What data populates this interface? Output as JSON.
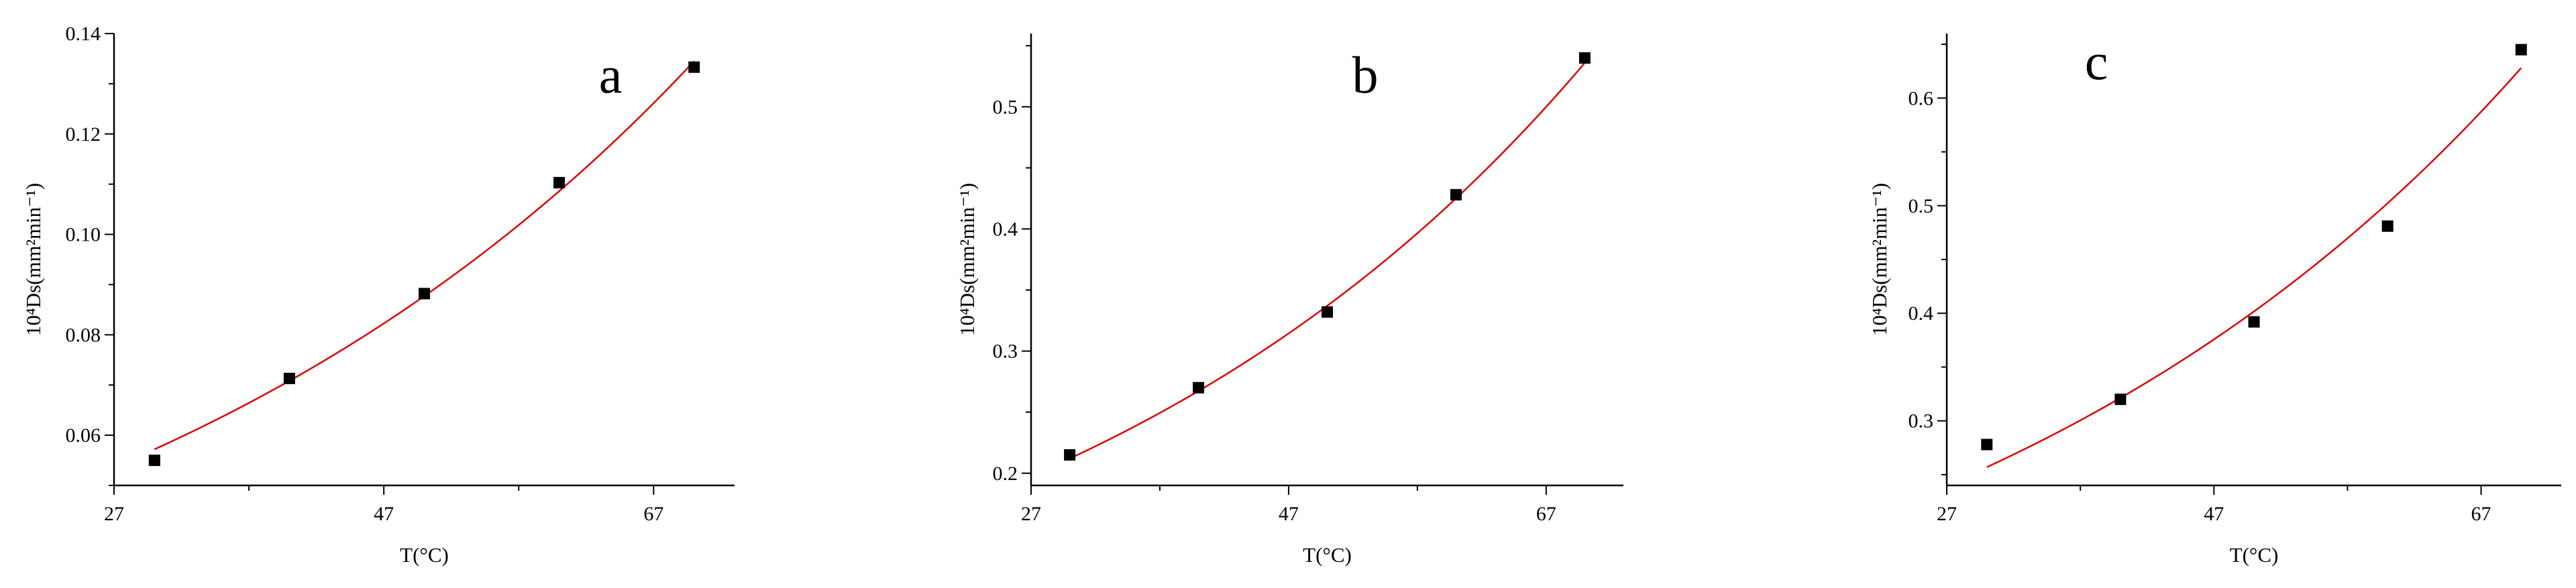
{
  "chart_data": [
    {
      "type": "scatter",
      "panel_label": "a",
      "xlabel": "T(°C)",
      "ylabel": "10⁴Ds(mm²min⁻¹)",
      "xlim": [
        27,
        73
      ],
      "ylim": [
        0.05,
        0.14
      ],
      "x_ticks": [
        27,
        47,
        67
      ],
      "y_ticks": [
        0.06,
        0.08,
        0.1,
        0.12,
        0.14
      ],
      "y_tick_labels": [
        "0.06",
        "0.08",
        "0.10",
        "0.12",
        "0.14"
      ],
      "points": [
        [
          30,
          0.055
        ],
        [
          40,
          0.0713
        ],
        [
          50,
          0.0882
        ],
        [
          60,
          0.1103
        ],
        [
          70,
          0.1333
        ]
      ],
      "fit": {
        "x_start": 30,
        "x_end": 70,
        "y_start": 0.0572,
        "y_end": 0.1345,
        "color": "#e00000"
      }
    },
    {
      "type": "scatter",
      "panel_label": "b",
      "xlabel": "T(°C)",
      "ylabel": "10⁴Ds(mm²min⁻¹)",
      "xlim": [
        27,
        73
      ],
      "ylim": [
        0.19,
        0.56
      ],
      "x_ticks": [
        27,
        47,
        67
      ],
      "y_ticks": [
        0.2,
        0.3,
        0.4,
        0.5
      ],
      "y_tick_labels": [
        "0.2",
        "0.3",
        "0.4",
        "0.5"
      ],
      "points": [
        [
          30,
          0.215
        ],
        [
          40,
          0.27
        ],
        [
          50,
          0.332
        ],
        [
          60,
          0.428
        ],
        [
          70,
          0.54
        ]
      ],
      "fit": {
        "x_start": 30,
        "x_end": 70,
        "y_start": 0.212,
        "y_end": 0.536,
        "color": "#e00000"
      }
    },
    {
      "type": "scatter",
      "panel_label": "c",
      "xlabel": "T(°C)",
      "ylabel": "10⁴Ds(mm²min⁻¹)",
      "xlim": [
        27,
        73
      ],
      "ylim": [
        0.24,
        0.66
      ],
      "x_ticks": [
        27,
        47,
        67
      ],
      "y_ticks": [
        0.3,
        0.4,
        0.5,
        0.6
      ],
      "y_tick_labels": [
        "0.3",
        "0.4",
        "0.5",
        "0.6"
      ],
      "points": [
        [
          30,
          0.278
        ],
        [
          40,
          0.32
        ],
        [
          50,
          0.392
        ],
        [
          60,
          0.481
        ],
        [
          70,
          0.645
        ]
      ],
      "fit": {
        "x_start": 30,
        "x_end": 70,
        "y_start": 0.257,
        "y_end": 0.628,
        "color": "#e00000"
      }
    }
  ]
}
